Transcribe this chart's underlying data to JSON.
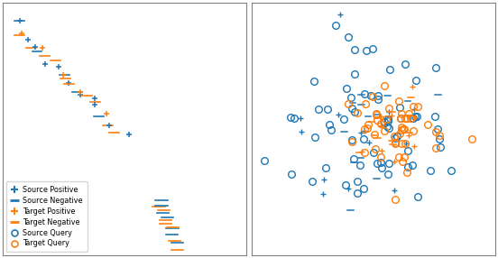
{
  "blue_color": "#1f77b4",
  "orange_color": "#ff7f0e",
  "fig_bg": "#ffffff",
  "legend_entries": [
    {
      "label": "Source Positive",
      "marker": "+",
      "color": "#1f77b4"
    },
    {
      "label": "Source Negative",
      "marker": "_",
      "color": "#1f77b4"
    },
    {
      "label": "Target Positive",
      "marker": "+",
      "color": "#ff7f0e"
    },
    {
      "label": "Target Negative",
      "marker": "_",
      "color": "#ff7f0e"
    },
    {
      "label": "Source Query",
      "marker": "o",
      "color": "#1f77b4"
    },
    {
      "label": "Target Query",
      "marker": "o",
      "color": "#ff7f0e"
    }
  ]
}
